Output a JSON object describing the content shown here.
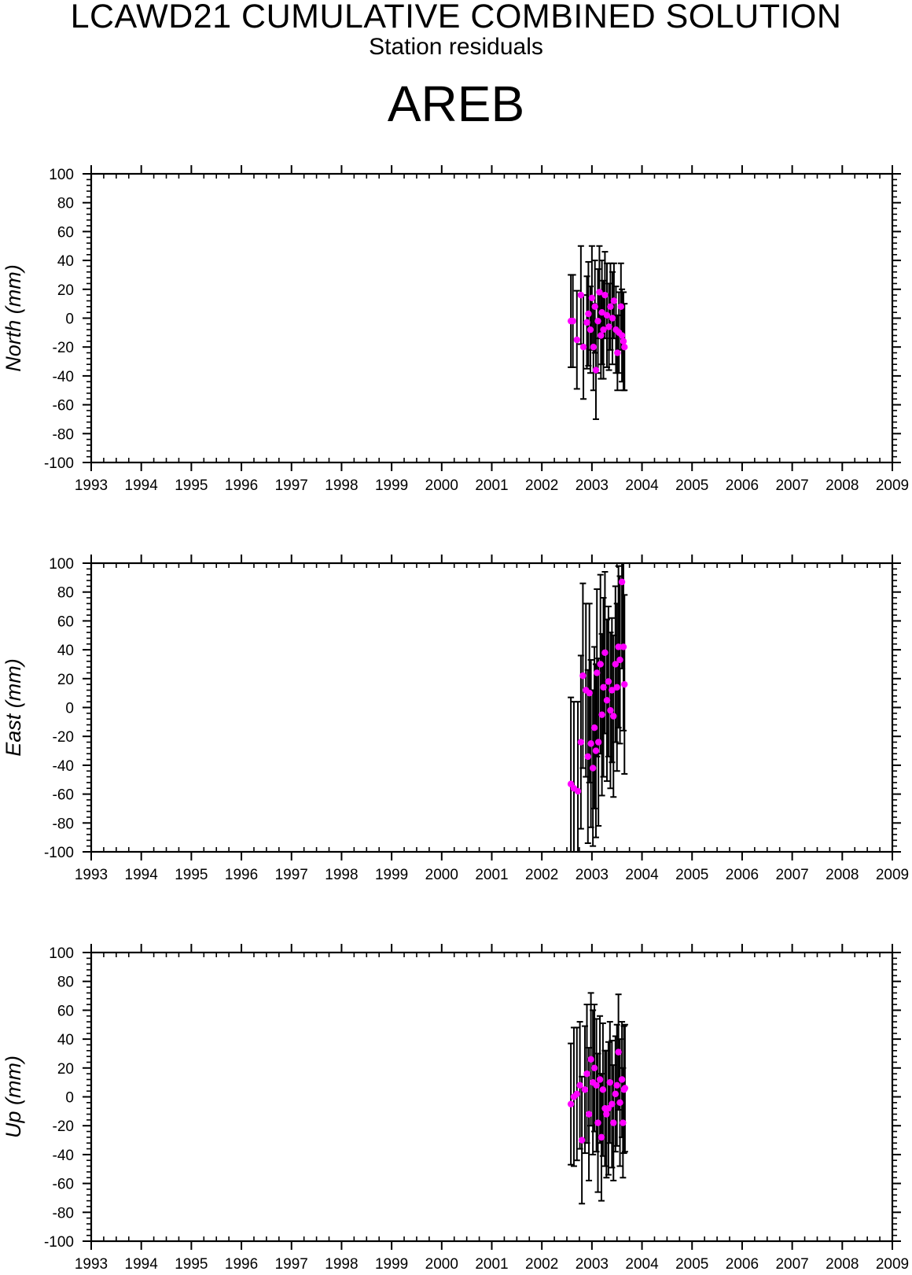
{
  "header": {
    "title": "LCAWD21 CUMULATIVE COMBINED SOLUTION",
    "subtitle": "Station residuals",
    "station": "AREB"
  },
  "colors": {
    "point": "#ff00ff",
    "errorbar": "#000000",
    "axis": "#000000"
  },
  "chart_data": [
    {
      "type": "scatter",
      "ylabel": "North (mm)",
      "xlim": [
        1993,
        2009
      ],
      "ylim": [
        -100,
        100
      ],
      "xticks": [
        "1993",
        "1994",
        "1995",
        "1996",
        "1997",
        "1998",
        "1999",
        "2000",
        "2001",
        "2002",
        "2003",
        "2004",
        "2005",
        "2006",
        "2007",
        "2008",
        "2009"
      ],
      "yticks": [
        "100",
        "80",
        "60",
        "40",
        "20",
        "0",
        "-20",
        "-40",
        "-60",
        "-80",
        "-100"
      ],
      "series": [
        {
          "points": [
            {
              "x": 2002.58,
              "y": -2,
              "err": 32
            },
            {
              "x": 2002.62,
              "y": -2,
              "err": 32
            },
            {
              "x": 2002.7,
              "y": -15,
              "err": 34
            },
            {
              "x": 2002.78,
              "y": 16,
              "err": 34
            },
            {
              "x": 2002.83,
              "y": -20,
              "err": 36
            },
            {
              "x": 2002.9,
              "y": -3,
              "err": 32
            },
            {
              "x": 2002.93,
              "y": 3,
              "err": 36
            },
            {
              "x": 2002.97,
              "y": -8,
              "err": 30
            },
            {
              "x": 2003.0,
              "y": 14,
              "err": 36
            },
            {
              "x": 2003.03,
              "y": -20,
              "err": 30
            },
            {
              "x": 2003.06,
              "y": 8,
              "err": 32
            },
            {
              "x": 2003.08,
              "y": -36,
              "err": 34
            },
            {
              "x": 2003.12,
              "y": -2,
              "err": 36
            },
            {
              "x": 2003.15,
              "y": 18,
              "err": 32
            },
            {
              "x": 2003.18,
              "y": -12,
              "err": 30
            },
            {
              "x": 2003.2,
              "y": 4,
              "err": 36
            },
            {
              "x": 2003.23,
              "y": -8,
              "err": 34
            },
            {
              "x": 2003.26,
              "y": 16,
              "err": 30
            },
            {
              "x": 2003.3,
              "y": 2,
              "err": 36
            },
            {
              "x": 2003.34,
              "y": -6,
              "err": 30
            },
            {
              "x": 2003.37,
              "y": 8,
              "err": 30
            },
            {
              "x": 2003.41,
              "y": 0,
              "err": 32
            },
            {
              "x": 2003.44,
              "y": 12,
              "err": 26
            },
            {
              "x": 2003.48,
              "y": -8,
              "err": 30
            },
            {
              "x": 2003.51,
              "y": -24,
              "err": 26
            },
            {
              "x": 2003.54,
              "y": -10,
              "err": 28
            },
            {
              "x": 2003.58,
              "y": 8,
              "err": 30
            },
            {
              "x": 2003.6,
              "y": -12,
              "err": 32
            },
            {
              "x": 2003.63,
              "y": -16,
              "err": 34
            },
            {
              "x": 2003.65,
              "y": -20,
              "err": 30
            }
          ]
        }
      ]
    },
    {
      "type": "scatter",
      "ylabel": "East (mm)",
      "xlim": [
        1993,
        2009
      ],
      "ylim": [
        -100,
        100
      ],
      "xticks": [
        "1993",
        "1994",
        "1995",
        "1996",
        "1997",
        "1998",
        "1999",
        "2000",
        "2001",
        "2002",
        "2003",
        "2004",
        "2005",
        "2006",
        "2007",
        "2008",
        "2009"
      ],
      "yticks": [
        "100",
        "80",
        "60",
        "40",
        "20",
        "0",
        "-20",
        "-40",
        "-60",
        "-80",
        "-100"
      ],
      "series": [
        {
          "points": [
            {
              "x": 2002.58,
              "y": -53,
              "err": 60
            },
            {
              "x": 2002.64,
              "y": -56,
              "err": 60
            },
            {
              "x": 2002.72,
              "y": -58,
              "err": 62
            },
            {
              "x": 2002.78,
              "y": -24,
              "err": 60
            },
            {
              "x": 2002.82,
              "y": 22,
              "err": 64
            },
            {
              "x": 2002.88,
              "y": 12,
              "err": 60
            },
            {
              "x": 2002.92,
              "y": -34,
              "err": 60
            },
            {
              "x": 2002.95,
              "y": 10,
              "err": 62
            },
            {
              "x": 2002.98,
              "y": -25,
              "err": 58
            },
            {
              "x": 2003.02,
              "y": -42,
              "err": 54
            },
            {
              "x": 2003.05,
              "y": -14,
              "err": 56
            },
            {
              "x": 2003.08,
              "y": -30,
              "err": 60
            },
            {
              "x": 2003.1,
              "y": 24,
              "err": 58
            },
            {
              "x": 2003.13,
              "y": -24,
              "err": 58
            },
            {
              "x": 2003.17,
              "y": 30,
              "err": 62
            },
            {
              "x": 2003.2,
              "y": -5,
              "err": 56
            },
            {
              "x": 2003.23,
              "y": 14,
              "err": 62
            },
            {
              "x": 2003.26,
              "y": 38,
              "err": 56
            },
            {
              "x": 2003.3,
              "y": 5,
              "err": 56
            },
            {
              "x": 2003.33,
              "y": 18,
              "err": 52
            },
            {
              "x": 2003.37,
              "y": -2,
              "err": 54
            },
            {
              "x": 2003.4,
              "y": 12,
              "err": 50
            },
            {
              "x": 2003.43,
              "y": -6,
              "err": 56
            },
            {
              "x": 2003.47,
              "y": 30,
              "err": 54
            },
            {
              "x": 2003.5,
              "y": 14,
              "err": 58
            },
            {
              "x": 2003.53,
              "y": 42,
              "err": 56
            },
            {
              "x": 2003.56,
              "y": 33,
              "err": 58
            },
            {
              "x": 2003.6,
              "y": 87,
              "err": 60
            },
            {
              "x": 2003.63,
              "y": 42,
              "err": 58
            },
            {
              "x": 2003.65,
              "y": 16,
              "err": 62
            }
          ]
        }
      ]
    },
    {
      "type": "scatter",
      "ylabel": "Up (mm)",
      "xlim": [
        1993,
        2009
      ],
      "ylim": [
        -100,
        100
      ],
      "xticks": [
        "1993",
        "1994",
        "1995",
        "1996",
        "1997",
        "1998",
        "1999",
        "2000",
        "2001",
        "2002",
        "2003",
        "2004",
        "2005",
        "2006",
        "2007",
        "2008",
        "2009"
      ],
      "yticks": [
        "100",
        "80",
        "60",
        "40",
        "20",
        "0",
        "-20",
        "-40",
        "-60",
        "-80",
        "-100"
      ],
      "series": [
        {
          "points": [
            {
              "x": 2002.58,
              "y": -5,
              "err": 42
            },
            {
              "x": 2002.64,
              "y": 0,
              "err": 48
            },
            {
              "x": 2002.7,
              "y": 2,
              "err": 46
            },
            {
              "x": 2002.76,
              "y": 8,
              "err": 44
            },
            {
              "x": 2002.8,
              "y": -30,
              "err": 44
            },
            {
              "x": 2002.86,
              "y": 5,
              "err": 44
            },
            {
              "x": 2002.9,
              "y": 16,
              "err": 48
            },
            {
              "x": 2002.94,
              "y": -12,
              "err": 46
            },
            {
              "x": 2002.98,
              "y": 26,
              "err": 46
            },
            {
              "x": 2003.02,
              "y": 10,
              "err": 50
            },
            {
              "x": 2003.05,
              "y": 20,
              "err": 44
            },
            {
              "x": 2003.09,
              "y": 8,
              "err": 46
            },
            {
              "x": 2003.12,
              "y": -18,
              "err": 48
            },
            {
              "x": 2003.16,
              "y": 12,
              "err": 44
            },
            {
              "x": 2003.19,
              "y": -28,
              "err": 44
            },
            {
              "x": 2003.22,
              "y": 5,
              "err": 46
            },
            {
              "x": 2003.26,
              "y": -8,
              "err": 40
            },
            {
              "x": 2003.29,
              "y": -12,
              "err": 44
            },
            {
              "x": 2003.33,
              "y": -8,
              "err": 46
            },
            {
              "x": 2003.36,
              "y": 10,
              "err": 42
            },
            {
              "x": 2003.4,
              "y": -5,
              "err": 44
            },
            {
              "x": 2003.43,
              "y": -18,
              "err": 40
            },
            {
              "x": 2003.47,
              "y": 2,
              "err": 40
            },
            {
              "x": 2003.5,
              "y": 8,
              "err": 42
            },
            {
              "x": 2003.53,
              "y": 31,
              "err": 40
            },
            {
              "x": 2003.56,
              "y": -4,
              "err": 44
            },
            {
              "x": 2003.6,
              "y": 12,
              "err": 40
            },
            {
              "x": 2003.62,
              "y": -18,
              "err": 38
            },
            {
              "x": 2003.64,
              "y": 5,
              "err": 44
            },
            {
              "x": 2003.66,
              "y": 6,
              "err": 44
            }
          ]
        }
      ]
    }
  ]
}
